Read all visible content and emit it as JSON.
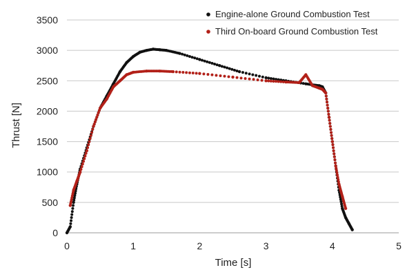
{
  "chart_data": {
    "type": "scatter",
    "xlabel": "Time [s]",
    "ylabel": "Thrust [N]",
    "xlim": [
      0,
      5
    ],
    "ylim": [
      0,
      3500
    ],
    "x_ticks": [
      "0",
      "1",
      "2",
      "3",
      "4",
      "5"
    ],
    "y_ticks": [
      "0",
      "500",
      "1000",
      "1500",
      "2000",
      "2500",
      "3000",
      "3500"
    ],
    "grid": "horizontal",
    "legend_position": "top-right",
    "series": [
      {
        "name": "Engine-alone Ground Combustion Test",
        "color": "#111111",
        "x": [
          0.0,
          0.05,
          0.1,
          0.15,
          0.2,
          0.3,
          0.4,
          0.5,
          0.6,
          0.7,
          0.8,
          0.9,
          1.0,
          1.1,
          1.2,
          1.3,
          1.4,
          1.5,
          1.7,
          2.0,
          2.3,
          2.6,
          3.0,
          3.3,
          3.6,
          3.8,
          3.85,
          3.9,
          3.95,
          4.0,
          4.05,
          4.1,
          4.15,
          4.2,
          4.25,
          4.3
        ],
        "y": [
          0,
          100,
          500,
          800,
          1050,
          1400,
          1750,
          2050,
          2250,
          2450,
          2650,
          2800,
          2900,
          2970,
          3000,
          3020,
          3010,
          3000,
          2950,
          2850,
          2750,
          2650,
          2550,
          2500,
          2450,
          2420,
          2400,
          2300,
          1900,
          1500,
          1100,
          700,
          400,
          250,
          150,
          50
        ]
      },
      {
        "name": "Third On-board Ground Combustion Test",
        "color": "#b22018",
        "x": [
          0.05,
          0.1,
          0.15,
          0.2,
          0.3,
          0.4,
          0.5,
          0.6,
          0.7,
          0.8,
          0.9,
          1.0,
          1.2,
          1.4,
          1.6,
          2.0,
          2.5,
          3.0,
          3.3,
          3.5,
          3.6,
          3.7,
          3.8,
          3.85,
          3.9,
          3.95,
          4.0,
          4.05,
          4.1,
          4.15,
          4.2
        ],
        "y": [
          450,
          700,
          850,
          1000,
          1350,
          1750,
          2050,
          2200,
          2400,
          2500,
          2600,
          2640,
          2660,
          2660,
          2650,
          2620,
          2560,
          2500,
          2480,
          2470,
          2600,
          2420,
          2380,
          2360,
          2300,
          1900,
          1500,
          1100,
          800,
          600,
          400
        ]
      }
    ]
  }
}
